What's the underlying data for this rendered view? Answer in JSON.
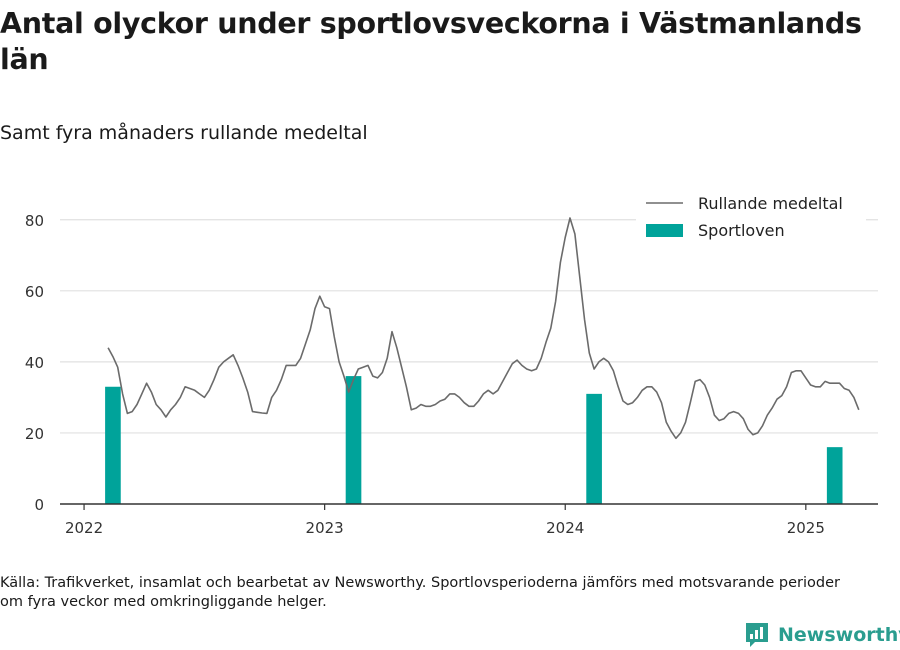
{
  "title": "Antal olyckor under sportlovsveckorna i Västmanlands län",
  "subtitle": "Samt fyra månaders rullande medeltal",
  "source": "Källa: Trafikverket, insamlat och bearbetat av Newsworthy. Sportlovsperioderna jämförs med motsvarande perioder om fyra veckor med omkringliggande helger.",
  "logo_text": "Newsworthy",
  "colors": {
    "bar": "#00a39a",
    "line": "#6b6b6b",
    "grid": "#e1e1e1",
    "axis": "#333333",
    "logo": "#2a9d8f"
  },
  "chart_data": {
    "type": "bar+line",
    "ylim": [
      0,
      85
    ],
    "yticks": [
      0,
      20,
      40,
      60,
      80
    ],
    "xlim": [
      2021.9,
      2025.3
    ],
    "xticks": [
      2022,
      2023,
      2024,
      2025
    ],
    "legend": {
      "position": "top-right",
      "items": [
        {
          "label": "Rullande medeltal",
          "kind": "line"
        },
        {
          "label": "Sportloven",
          "kind": "bar"
        }
      ]
    },
    "bars": {
      "name": "Sportloven",
      "x": [
        2022.12,
        2023.12,
        2024.12,
        2025.12
      ],
      "width": 0.065,
      "values": [
        33,
        36,
        31,
        16
      ]
    },
    "line": {
      "name": "Rullande medeltal",
      "points": [
        [
          2022.1,
          44
        ],
        [
          2022.12,
          41.5
        ],
        [
          2022.14,
          38.5
        ],
        [
          2022.16,
          31
        ],
        [
          2022.18,
          25.5
        ],
        [
          2022.2,
          26
        ],
        [
          2022.22,
          28
        ],
        [
          2022.24,
          31
        ],
        [
          2022.26,
          34
        ],
        [
          2022.28,
          31.5
        ],
        [
          2022.3,
          28
        ],
        [
          2022.32,
          26.5
        ],
        [
          2022.34,
          24.5
        ],
        [
          2022.36,
          26.5
        ],
        [
          2022.38,
          28
        ],
        [
          2022.4,
          30
        ],
        [
          2022.42,
          33
        ],
        [
          2022.44,
          32.5
        ],
        [
          2022.46,
          32
        ],
        [
          2022.48,
          31
        ],
        [
          2022.5,
          30
        ],
        [
          2022.52,
          32
        ],
        [
          2022.54,
          35
        ],
        [
          2022.56,
          38.5
        ],
        [
          2022.58,
          40
        ],
        [
          2022.6,
          41
        ],
        [
          2022.62,
          42
        ],
        [
          2022.64,
          39
        ],
        [
          2022.66,
          35.5
        ],
        [
          2022.68,
          31.5
        ],
        [
          2022.7,
          26
        ],
        [
          2022.72,
          25.8
        ],
        [
          2022.74,
          25.6
        ],
        [
          2022.76,
          25.5
        ],
        [
          2022.78,
          30
        ],
        [
          2022.8,
          32
        ],
        [
          2022.82,
          35
        ],
        [
          2022.84,
          39
        ],
        [
          2022.86,
          39
        ],
        [
          2022.88,
          39
        ],
        [
          2022.9,
          41
        ],
        [
          2022.92,
          45
        ],
        [
          2022.94,
          49
        ],
        [
          2022.96,
          55
        ],
        [
          2022.98,
          58.5
        ],
        [
          2023.0,
          55.5
        ],
        [
          2023.02,
          55
        ],
        [
          2023.04,
          47
        ],
        [
          2023.06,
          40
        ],
        [
          2023.08,
          36
        ],
        [
          2023.1,
          31.5
        ],
        [
          2023.12,
          35
        ],
        [
          2023.14,
          38
        ],
        [
          2023.16,
          38.5
        ],
        [
          2023.18,
          39
        ],
        [
          2023.2,
          36
        ],
        [
          2023.22,
          35.5
        ],
        [
          2023.24,
          37
        ],
        [
          2023.26,
          41
        ],
        [
          2023.28,
          48.5
        ],
        [
          2023.3,
          44
        ],
        [
          2023.32,
          38.5
        ],
        [
          2023.34,
          33
        ],
        [
          2023.36,
          26.5
        ],
        [
          2023.38,
          27
        ],
        [
          2023.4,
          28
        ],
        [
          2023.42,
          27.5
        ],
        [
          2023.44,
          27.5
        ],
        [
          2023.46,
          28
        ],
        [
          2023.48,
          29
        ],
        [
          2023.5,
          29.5
        ],
        [
          2023.52,
          31
        ],
        [
          2023.54,
          31
        ],
        [
          2023.56,
          30
        ],
        [
          2023.58,
          28.5
        ],
        [
          2023.6,
          27.5
        ],
        [
          2023.62,
          27.5
        ],
        [
          2023.64,
          29
        ],
        [
          2023.66,
          31
        ],
        [
          2023.68,
          32
        ],
        [
          2023.7,
          31
        ],
        [
          2023.72,
          32
        ],
        [
          2023.74,
          34.5
        ],
        [
          2023.76,
          37
        ],
        [
          2023.78,
          39.5
        ],
        [
          2023.8,
          40.5
        ],
        [
          2023.82,
          39
        ],
        [
          2023.84,
          38
        ],
        [
          2023.86,
          37.5
        ],
        [
          2023.88,
          38
        ],
        [
          2023.9,
          41
        ],
        [
          2023.92,
          45.5
        ],
        [
          2023.94,
          49.5
        ],
        [
          2023.96,
          57
        ],
        [
          2023.98,
          68
        ],
        [
          2024.0,
          75
        ],
        [
          2024.02,
          80.5
        ],
        [
          2024.04,
          76
        ],
        [
          2024.06,
          64
        ],
        [
          2024.08,
          52
        ],
        [
          2024.1,
          42.5
        ],
        [
          2024.12,
          38
        ],
        [
          2024.14,
          40
        ],
        [
          2024.16,
          41
        ],
        [
          2024.18,
          40
        ],
        [
          2024.2,
          37.5
        ],
        [
          2024.22,
          33
        ],
        [
          2024.24,
          29
        ],
        [
          2024.26,
          28
        ],
        [
          2024.28,
          28.5
        ],
        [
          2024.3,
          30
        ],
        [
          2024.32,
          32
        ],
        [
          2024.34,
          33
        ],
        [
          2024.36,
          33
        ],
        [
          2024.38,
          31.5
        ],
        [
          2024.4,
          28.5
        ],
        [
          2024.42,
          23
        ],
        [
          2024.44,
          20.5
        ],
        [
          2024.46,
          18.5
        ],
        [
          2024.48,
          20
        ],
        [
          2024.5,
          23
        ],
        [
          2024.52,
          28.5
        ],
        [
          2024.54,
          34.5
        ],
        [
          2024.56,
          35
        ],
        [
          2024.58,
          33.5
        ],
        [
          2024.6,
          30
        ],
        [
          2024.62,
          25
        ],
        [
          2024.64,
          23.5
        ],
        [
          2024.66,
          24
        ],
        [
          2024.68,
          25.5
        ],
        [
          2024.7,
          26
        ],
        [
          2024.72,
          25.5
        ],
        [
          2024.74,
          24
        ],
        [
          2024.76,
          21
        ],
        [
          2024.78,
          19.5
        ],
        [
          2024.8,
          20
        ],
        [
          2024.82,
          22
        ],
        [
          2024.84,
          25
        ],
        [
          2024.86,
          27
        ],
        [
          2024.88,
          29.5
        ],
        [
          2024.9,
          30.5
        ],
        [
          2024.92,
          33
        ],
        [
          2024.94,
          37
        ],
        [
          2024.96,
          37.5
        ],
        [
          2024.98,
          37.5
        ],
        [
          2025.0,
          35.5
        ],
        [
          2025.02,
          33.5
        ],
        [
          2025.04,
          33
        ],
        [
          2025.06,
          33
        ],
        [
          2025.08,
          34.5
        ],
        [
          2025.1,
          34
        ],
        [
          2025.12,
          34
        ],
        [
          2025.14,
          34
        ],
        [
          2025.16,
          32.5
        ],
        [
          2025.18,
          32
        ],
        [
          2025.2,
          30
        ],
        [
          2025.22,
          26.5
        ]
      ]
    }
  }
}
